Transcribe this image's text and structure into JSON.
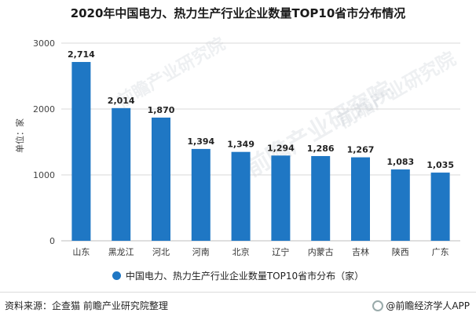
{
  "title": "2020年中国电力、热力生产行业企业数量TOP10省市分布情况",
  "y_axis_label": "单位：家",
  "legend_label": "中国电力、热力生产行业企业数量TOP10省市分布（家）",
  "source_text": "资料来源：企查猫 前瞻产业研究院整理",
  "brand_text": "@前瞻经济学人APP",
  "watermark_text": "前瞻产业研究院",
  "colors": {
    "bar": "#1f77c4",
    "grid": "#d9d9d9",
    "axis": "#bfbfbf"
  },
  "chart_data": {
    "type": "bar",
    "categories": [
      "山东",
      "黑龙江",
      "河北",
      "河南",
      "北京",
      "辽宁",
      "内蒙古",
      "吉林",
      "陕西",
      "广东"
    ],
    "series": [
      {
        "name": "中国电力、热力生产行业企业数量TOP10省市分布（家）",
        "values": [
          2714,
          2014,
          1870,
          1394,
          1349,
          1294,
          1286,
          1267,
          1083,
          1035
        ]
      }
    ],
    "data_labels": [
      "2,714",
      "2,014",
      "1,870",
      "1,394",
      "1,349",
      "1,294",
      "1,286",
      "1,267",
      "1,083",
      "1,035"
    ],
    "yticks": [
      0,
      1000,
      2000,
      3000
    ],
    "ylim": [
      0,
      3000
    ],
    "grid": true,
    "legend_position": "bottom"
  }
}
